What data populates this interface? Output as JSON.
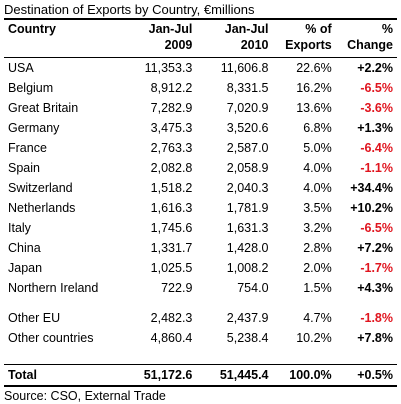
{
  "title": "Destination of Exports by Country, €millions",
  "headers": {
    "country": "Country",
    "col1_line1": "Jan-Jul",
    "col1_line2": "2009",
    "col2_line1": "Jan-Jul",
    "col2_line2": "2010",
    "col3_line1": "% of",
    "col3_line2": "Exports",
    "col4_line1": "%",
    "col4_line2": "Change"
  },
  "rows": [
    {
      "country": "USA",
      "v2009": "11,353.3",
      "v2010": "11,606.8",
      "pct": "22.6%",
      "change": "+2.2%"
    },
    {
      "country": "Belgium",
      "v2009": "8,912.2",
      "v2010": "8,331.5",
      "pct": "16.2%",
      "change": "-6.5%"
    },
    {
      "country": "Great Britain",
      "v2009": "7,282.9",
      "v2010": "7,020.9",
      "pct": "13.6%",
      "change": "-3.6%"
    },
    {
      "country": "Germany",
      "v2009": "3,475.3",
      "v2010": "3,520.6",
      "pct": "6.8%",
      "change": "+1.3%"
    },
    {
      "country": "France",
      "v2009": "2,763.3",
      "v2010": "2,587.0",
      "pct": "5.0%",
      "change": "-6.4%"
    },
    {
      "country": "Spain",
      "v2009": "2,082.8",
      "v2010": "2,058.9",
      "pct": "4.0%",
      "change": "-1.1%"
    },
    {
      "country": "Switzerland",
      "v2009": "1,518.2",
      "v2010": "2,040.3",
      "pct": "4.0%",
      "change": "+34.4%"
    },
    {
      "country": "Netherlands",
      "v2009": "1,616.3",
      "v2010": "1,781.9",
      "pct": "3.5%",
      "change": "+10.2%"
    },
    {
      "country": "Italy",
      "v2009": "1,745.6",
      "v2010": "1,631.3",
      "pct": "3.2%",
      "change": "-6.5%"
    },
    {
      "country": "China",
      "v2009": "1,331.7",
      "v2010": "1,428.0",
      "pct": "2.8%",
      "change": "+7.2%"
    },
    {
      "country": "Japan",
      "v2009": "1,025.5",
      "v2010": "1,008.2",
      "pct": "2.0%",
      "change": "-1.7%"
    },
    {
      "country": "Northern Ireland",
      "v2009": "722.9",
      "v2010": "754.0",
      "pct": "1.5%",
      "change": "+4.3%"
    }
  ],
  "other_rows": [
    {
      "country": "Other EU",
      "v2009": "2,482.3",
      "v2010": "2,437.9",
      "pct": "4.7%",
      "change": "-1.8%"
    },
    {
      "country": "Other countries",
      "v2009": "4,860.4",
      "v2010": "5,238.4",
      "pct": "10.2%",
      "change": "+7.8%"
    }
  ],
  "total": {
    "country": "Total",
    "v2009": "51,172.6",
    "v2010": "51,445.4",
    "pct": "100.0%",
    "change": "+0.5%"
  },
  "source": "Source: CSO, External Trade",
  "colors": {
    "negative": "#e0141e",
    "positive": "#000000",
    "rule": "#000000"
  }
}
